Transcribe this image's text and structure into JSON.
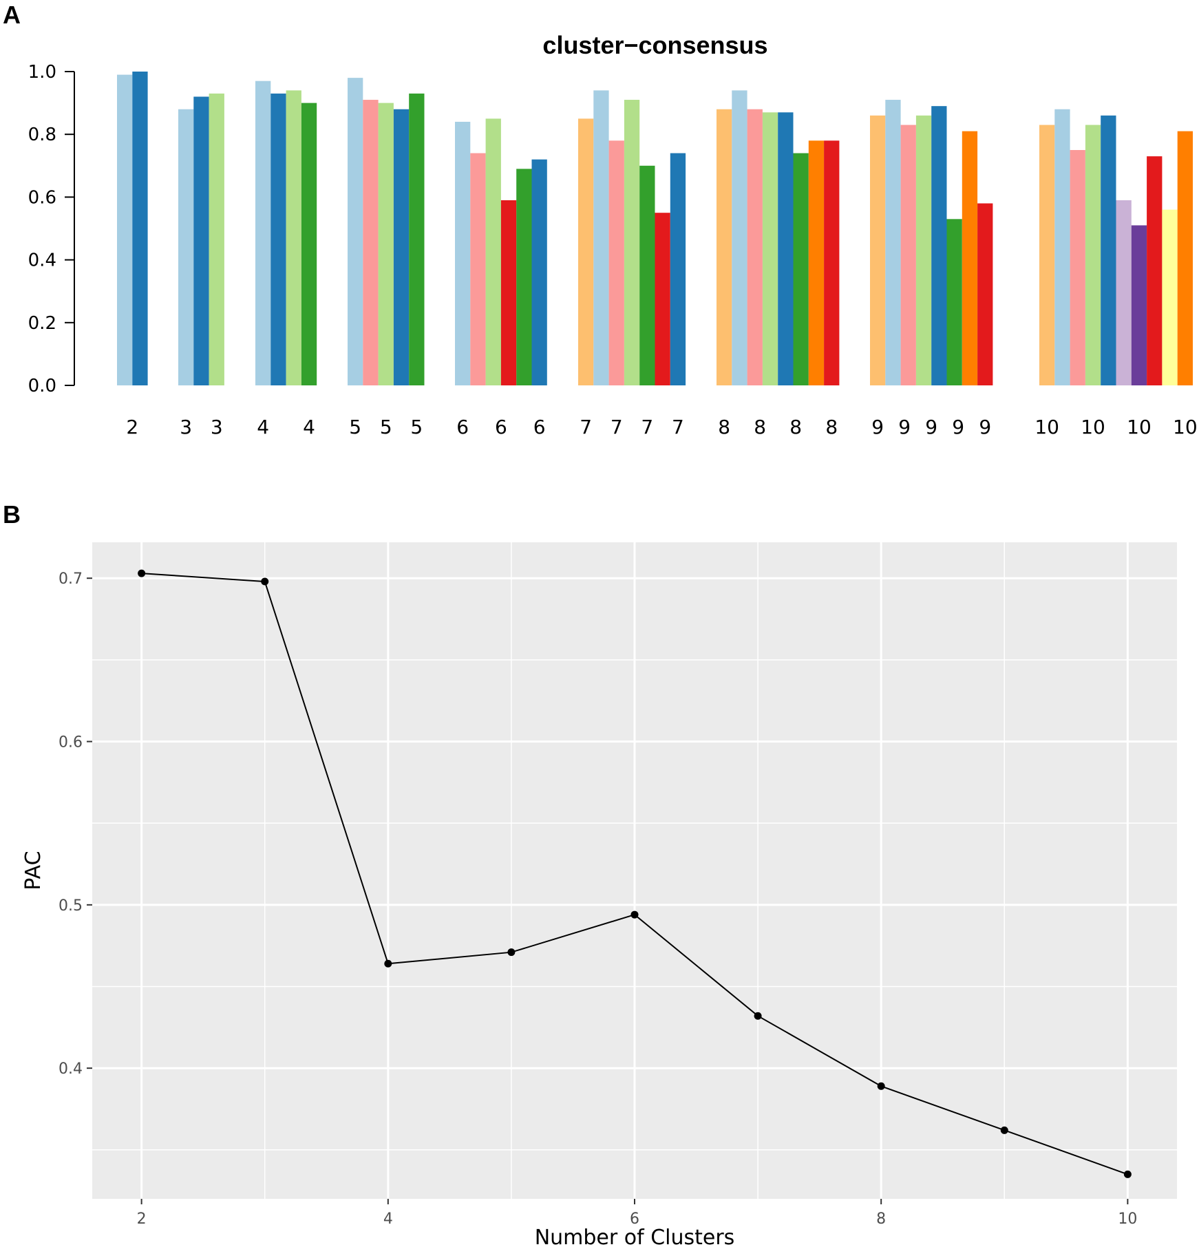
{
  "colors": {
    "palette": [
      "#a6cee3",
      "#1f78b4",
      "#b2df8a",
      "#33a02c",
      "#fb9a99",
      "#e31a1c",
      "#fdbf6f",
      "#ff7f00",
      "#cab2d6",
      "#6a3d9a",
      "#ffff99"
    ],
    "panel_bg": "#ebebeb",
    "grid": "#ffffff",
    "line": "#000000"
  },
  "chart_data": [
    {
      "panel": "A",
      "type": "bar",
      "title": "cluster−consensus",
      "xlabel": "",
      "ylabel": "",
      "ylim": [
        0,
        1
      ],
      "yticks": [
        "0.0",
        "0.2",
        "0.4",
        "0.6",
        "0.8",
        "1.0"
      ],
      "grid": false,
      "groups": [
        {
          "k": 2,
          "bars": [
            {
              "value": 0.99,
              "color": "#a6cee3"
            },
            {
              "value": 1.0,
              "color": "#1f78b4"
            }
          ],
          "tick_labels": [
            "2"
          ]
        },
        {
          "k": 3,
          "bars": [
            {
              "value": 0.88,
              "color": "#a6cee3"
            },
            {
              "value": 0.92,
              "color": "#1f78b4"
            },
            {
              "value": 0.93,
              "color": "#b2df8a"
            }
          ],
          "tick_labels": [
            "3",
            "3"
          ]
        },
        {
          "k": 4,
          "bars": [
            {
              "value": 0.97,
              "color": "#a6cee3"
            },
            {
              "value": 0.93,
              "color": "#1f78b4"
            },
            {
              "value": 0.94,
              "color": "#b2df8a"
            },
            {
              "value": 0.9,
              "color": "#33a02c"
            }
          ],
          "tick_labels": [
            "4",
            "4"
          ]
        },
        {
          "k": 5,
          "bars": [
            {
              "value": 0.98,
              "color": "#a6cee3"
            },
            {
              "value": 0.91,
              "color": "#fb9a99"
            },
            {
              "value": 0.9,
              "color": "#b2df8a"
            },
            {
              "value": 0.88,
              "color": "#1f78b4"
            },
            {
              "value": 0.93,
              "color": "#33a02c"
            }
          ],
          "tick_labels": [
            "5",
            "5",
            "5"
          ]
        },
        {
          "k": 6,
          "bars": [
            {
              "value": 0.84,
              "color": "#a6cee3"
            },
            {
              "value": 0.74,
              "color": "#fb9a99"
            },
            {
              "value": 0.85,
              "color": "#b2df8a"
            },
            {
              "value": 0.59,
              "color": "#e31a1c"
            },
            {
              "value": 0.69,
              "color": "#33a02c"
            },
            {
              "value": 0.72,
              "color": "#1f78b4"
            }
          ],
          "tick_labels": [
            "6",
            "6",
            "6"
          ]
        },
        {
          "k": 7,
          "bars": [
            {
              "value": 0.85,
              "color": "#fdbf6f"
            },
            {
              "value": 0.94,
              "color": "#a6cee3"
            },
            {
              "value": 0.78,
              "color": "#fb9a99"
            },
            {
              "value": 0.91,
              "color": "#b2df8a"
            },
            {
              "value": 0.7,
              "color": "#33a02c"
            },
            {
              "value": 0.55,
              "color": "#e31a1c"
            },
            {
              "value": 0.74,
              "color": "#1f78b4"
            }
          ],
          "tick_labels": [
            "7",
            "7",
            "7",
            "7"
          ]
        },
        {
          "k": 8,
          "bars": [
            {
              "value": 0.88,
              "color": "#fdbf6f"
            },
            {
              "value": 0.94,
              "color": "#a6cee3"
            },
            {
              "value": 0.88,
              "color": "#fb9a99"
            },
            {
              "value": 0.87,
              "color": "#b2df8a"
            },
            {
              "value": 0.87,
              "color": "#1f78b4"
            },
            {
              "value": 0.74,
              "color": "#33a02c"
            },
            {
              "value": 0.78,
              "color": "#ff7f00"
            },
            {
              "value": 0.78,
              "color": "#e31a1c"
            }
          ],
          "tick_labels": [
            "8",
            "8",
            "8",
            "8"
          ]
        },
        {
          "k": 9,
          "bars": [
            {
              "value": 0.86,
              "color": "#fdbf6f"
            },
            {
              "value": 0.91,
              "color": "#a6cee3"
            },
            {
              "value": 0.83,
              "color": "#fb9a99"
            },
            {
              "value": 0.86,
              "color": "#b2df8a"
            },
            {
              "value": 0.89,
              "color": "#1f78b4"
            },
            {
              "value": 0.53,
              "color": "#33a02c"
            },
            {
              "value": 0.81,
              "color": "#ff7f00"
            },
            {
              "value": 0.58,
              "color": "#e31a1c"
            }
          ],
          "tick_labels": [
            "9",
            "9",
            "9",
            "9",
            "9"
          ]
        },
        {
          "k": 10,
          "bars": [
            {
              "value": 0.83,
              "color": "#fdbf6f"
            },
            {
              "value": 0.88,
              "color": "#a6cee3"
            },
            {
              "value": 0.75,
              "color": "#fb9a99"
            },
            {
              "value": 0.83,
              "color": "#b2df8a"
            },
            {
              "value": 0.86,
              "color": "#1f78b4"
            },
            {
              "value": 0.59,
              "color": "#cab2d6"
            },
            {
              "value": 0.51,
              "color": "#6a3d9a"
            },
            {
              "value": 0.73,
              "color": "#e31a1c"
            },
            {
              "value": 0.56,
              "color": "#ffff99"
            },
            {
              "value": 0.81,
              "color": "#ff7f00"
            }
          ],
          "tick_labels": [
            "10",
            "10",
            "10",
            "10"
          ]
        }
      ]
    },
    {
      "panel": "B",
      "type": "line",
      "title": "",
      "xlabel": "Number of Clusters",
      "ylabel": "PAC",
      "x": [
        2,
        3,
        4,
        5,
        6,
        7,
        8,
        9,
        10
      ],
      "series": [
        {
          "name": "PAC",
          "values": [
            0.703,
            0.698,
            0.464,
            0.471,
            0.494,
            0.432,
            0.389,
            0.362,
            0.335
          ]
        }
      ],
      "xlim": [
        1.6,
        10.4
      ],
      "ylim": [
        0.32,
        0.722
      ],
      "xticks": [
        2,
        4,
        6,
        8,
        10
      ],
      "xtick_labels": [
        "2",
        "4",
        "6",
        "8",
        "10"
      ],
      "yticks": [
        0.4,
        0.5,
        0.6,
        0.7
      ],
      "ytick_labels": [
        "0.4",
        "0.5",
        "0.6",
        "0.7"
      ],
      "grid": true
    }
  ],
  "panel_labels": {
    "a": "A",
    "b": "B"
  }
}
